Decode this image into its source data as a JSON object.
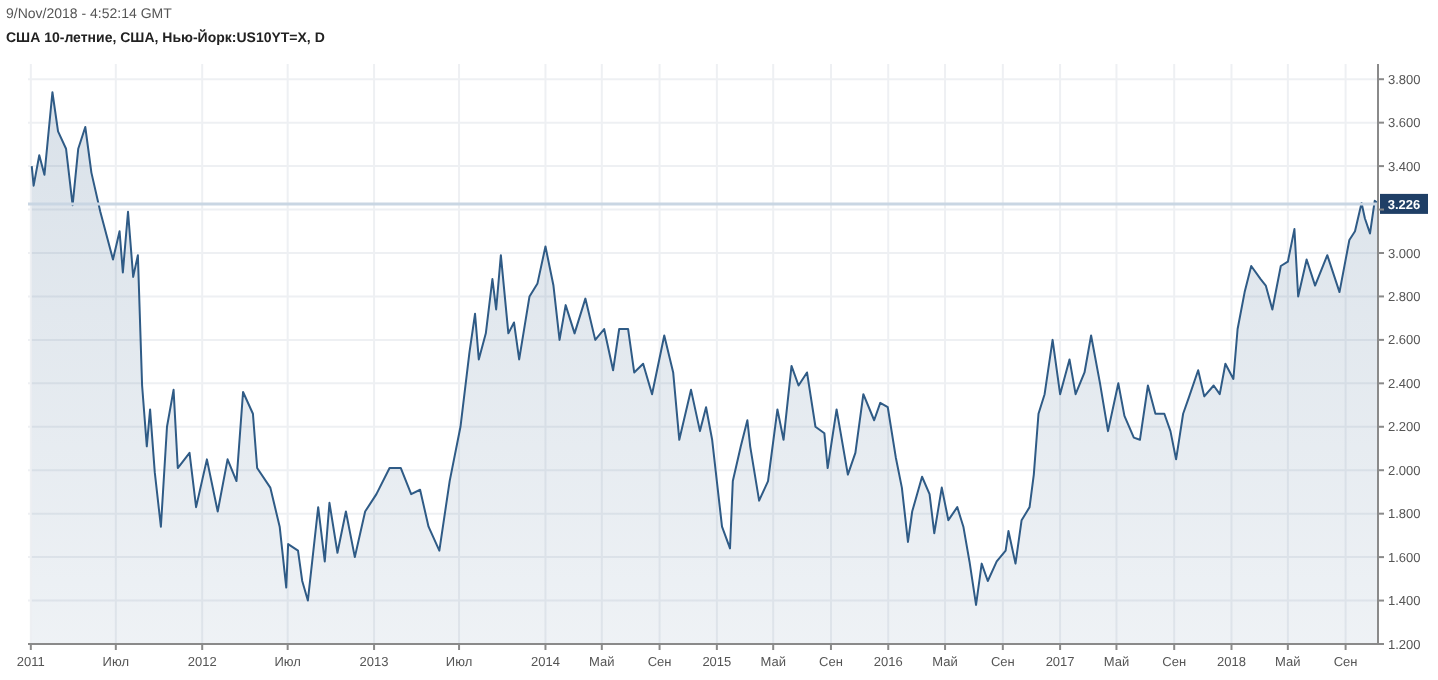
{
  "chart_data": {
    "type": "area",
    "title": "США 10-летние, США, Нью-Йорк:US10YT=X, D",
    "subtitle": "9/Nov/2018 - 4:52:14 GMT",
    "x": [
      "2011-01-03",
      "2011-01-07",
      "2011-01-19",
      "2011-01-30",
      "2011-02-16",
      "2011-02-28",
      "2011-03-17",
      "2011-03-31",
      "2011-04-12",
      "2011-04-27",
      "2011-05-10",
      "2011-05-29",
      "2011-06-25",
      "2011-07-09",
      "2011-07-16",
      "2011-07-27",
      "2011-08-07",
      "2011-08-17",
      "2011-08-26",
      "2011-09-05",
      "2011-09-12",
      "2011-09-22",
      "2011-10-05",
      "2011-10-18",
      "2011-11-01",
      "2011-11-10",
      "2011-12-05",
      "2011-12-19",
      "2012-01-11",
      "2012-02-03",
      "2012-02-24",
      "2012-03-14",
      "2012-03-28",
      "2012-04-18",
      "2012-04-27",
      "2012-05-25",
      "2012-06-14",
      "2012-06-28",
      "2012-07-02",
      "2012-07-23",
      "2012-08-01",
      "2012-08-13",
      "2012-09-04",
      "2012-09-18",
      "2012-09-28",
      "2012-10-15",
      "2012-11-02",
      "2012-11-21",
      "2012-12-13",
      "2013-01-06",
      "2013-02-03",
      "2013-02-27",
      "2013-03-21",
      "2013-04-09",
      "2013-04-27",
      "2013-05-20",
      "2013-06-11",
      "2013-07-04",
      "2013-07-23",
      "2013-08-04",
      "2013-08-12",
      "2013-08-27",
      "2013-09-10",
      "2013-09-18",
      "2013-09-28",
      "2013-10-14",
      "2013-10-26",
      "2013-11-06",
      "2013-11-28",
      "2013-12-15",
      "2014-01-01",
      "2014-01-18",
      "2014-01-31",
      "2014-02-13",
      "2014-03-04",
      "2014-03-27",
      "2014-04-17",
      "2014-05-06",
      "2014-05-25",
      "2014-06-07",
      "2014-06-26",
      "2014-07-09",
      "2014-07-28",
      "2014-08-16",
      "2014-09-11",
      "2014-09-30",
      "2014-10-13",
      "2014-11-07",
      "2014-11-26",
      "2014-12-09",
      "2014-12-22",
      "2015-01-12",
      "2015-01-29",
      "2015-02-04",
      "2015-02-21",
      "2015-03-07",
      "2015-03-13",
      "2015-04-01",
      "2015-04-20",
      "2015-05-10",
      "2015-05-23",
      "2015-06-09",
      "2015-06-24",
      "2015-07-12",
      "2015-07-30",
      "2015-08-18",
      "2015-08-25",
      "2015-09-13",
      "2015-10-07",
      "2015-10-23",
      "2015-11-09",
      "2015-12-02",
      "2015-12-15",
      "2015-12-31",
      "2016-01-17",
      "2016-01-30",
      "2016-02-12",
      "2016-02-21",
      "2016-03-13",
      "2016-03-29",
      "2016-04-08",
      "2016-04-24",
      "2016-05-08",
      "2016-05-27",
      "2016-06-09",
      "2016-06-22",
      "2016-07-06",
      "2016-07-18",
      "2016-07-31",
      "2016-08-19",
      "2016-09-07",
      "2016-09-13",
      "2016-09-28",
      "2016-10-11",
      "2016-10-28",
      "2016-11-06",
      "2016-11-16",
      "2016-11-29",
      "2016-12-16",
      "2017-01-01",
      "2017-01-21",
      "2017-02-03",
      "2017-02-22",
      "2017-03-08",
      "2017-03-27",
      "2017-04-13",
      "2017-05-05",
      "2017-05-18",
      "2017-06-07",
      "2017-06-20",
      "2017-07-07",
      "2017-07-23",
      "2017-08-11",
      "2017-08-24",
      "2017-09-05",
      "2017-09-20",
      "2017-10-03",
      "2017-10-22",
      "2017-11-04",
      "2017-11-24",
      "2017-12-07",
      "2017-12-19",
      "2018-01-05",
      "2018-01-14",
      "2018-01-29",
      "2018-02-12",
      "2018-03-04",
      "2018-03-15",
      "2018-03-29",
      "2018-04-16",
      "2018-05-01",
      "2018-05-15",
      "2018-05-23",
      "2018-06-10",
      "2018-06-28",
      "2018-07-24",
      "2018-08-19",
      "2018-09-09",
      "2018-09-21",
      "2018-10-05",
      "2018-10-12",
      "2018-10-23",
      "2018-11-02",
      "2018-11-08"
    ],
    "series": [
      {
        "color": "#2f5b86",
        "values": [
          3.4,
          3.31,
          3.45,
          3.36,
          3.74,
          3.56,
          3.48,
          3.22,
          3.48,
          3.58,
          3.37,
          3.19,
          2.97,
          3.1,
          2.91,
          3.19,
          2.89,
          2.99,
          2.39,
          2.11,
          2.28,
          1.99,
          1.74,
          2.2,
          2.37,
          2.01,
          2.08,
          1.83,
          2.05,
          1.81,
          2.05,
          1.95,
          2.36,
          2.26,
          2.01,
          1.92,
          1.74,
          1.46,
          1.66,
          1.63,
          1.49,
          1.4,
          1.83,
          1.58,
          1.85,
          1.62,
          1.81,
          1.6,
          1.81,
          1.89,
          2.01,
          2.01,
          1.89,
          1.91,
          1.74,
          1.63,
          1.95,
          2.2,
          2.54,
          2.72,
          2.51,
          2.63,
          2.88,
          2.74,
          2.99,
          2.63,
          2.68,
          2.51,
          2.8,
          2.86,
          3.03,
          2.85,
          2.6,
          2.76,
          2.63,
          2.79,
          2.6,
          2.65,
          2.46,
          2.65,
          2.65,
          2.45,
          2.49,
          2.35,
          2.62,
          2.45,
          2.14,
          2.37,
          2.18,
          2.29,
          2.14,
          1.74,
          1.64,
          1.95,
          2.11,
          2.23,
          2.11,
          1.86,
          1.95,
          2.28,
          2.14,
          2.48,
          2.39,
          2.45,
          2.2,
          2.17,
          2.01,
          2.28,
          1.98,
          2.08,
          2.35,
          2.23,
          2.31,
          2.29,
          2.06,
          1.92,
          1.67,
          1.81,
          1.97,
          1.89,
          1.71,
          1.92,
          1.77,
          1.83,
          1.74,
          1.58,
          1.38,
          1.57,
          1.49,
          1.58,
          1.63,
          1.72,
          1.57,
          1.77,
          1.83,
          1.98,
          2.26,
          2.35,
          2.6,
          2.35,
          2.51,
          2.35,
          2.45,
          2.62,
          2.4,
          2.18,
          2.4,
          2.25,
          2.15,
          2.14,
          2.39,
          2.26,
          2.26,
          2.18,
          2.05,
          2.26,
          2.34,
          2.46,
          2.34,
          2.39,
          2.35,
          2.49,
          2.42,
          2.65,
          2.82,
          2.94,
          2.88,
          2.85,
          2.74,
          2.94,
          2.96,
          3.11,
          2.8,
          2.97,
          2.85,
          2.99,
          2.82,
          3.06,
          3.1,
          3.23,
          3.16,
          3.09,
          3.24,
          3.23
        ]
      }
    ],
    "xlim": [
      "2010-12-26",
      "2018-11-09"
    ],
    "xticks": [
      {
        "value": "2011-01-01",
        "label": "2011"
      },
      {
        "value": "2011-07-01",
        "label": "Июл"
      },
      {
        "value": "2012-01-01",
        "label": "2012"
      },
      {
        "value": "2012-07-01",
        "label": "Июл"
      },
      {
        "value": "2013-01-01",
        "label": "2013"
      },
      {
        "value": "2013-07-01",
        "label": "Июл"
      },
      {
        "value": "2014-01-01",
        "label": "2014"
      },
      {
        "value": "2014-05-01",
        "label": "Май"
      },
      {
        "value": "2014-09-01",
        "label": "Сен"
      },
      {
        "value": "2015-01-01",
        "label": "2015"
      },
      {
        "value": "2015-05-01",
        "label": "Май"
      },
      {
        "value": "2015-09-01",
        "label": "Сен"
      },
      {
        "value": "2016-01-01",
        "label": "2016"
      },
      {
        "value": "2016-05-01",
        "label": "Май"
      },
      {
        "value": "2016-09-01",
        "label": "Сен"
      },
      {
        "value": "2017-01-01",
        "label": "2017"
      },
      {
        "value": "2017-05-01",
        "label": "Май"
      },
      {
        "value": "2017-09-01",
        "label": "Сен"
      },
      {
        "value": "2018-01-01",
        "label": "2018"
      },
      {
        "value": "2018-05-01",
        "label": "Май"
      },
      {
        "value": "2018-09-01",
        "label": "Сен"
      }
    ],
    "ylim": [
      1.2,
      3.87
    ],
    "yticks": [
      {
        "value": 1.2,
        "label": "1.200"
      },
      {
        "value": 1.4,
        "label": "1.400"
      },
      {
        "value": 1.6,
        "label": "1.600"
      },
      {
        "value": 1.8,
        "label": "1.800"
      },
      {
        "value": 2.0,
        "label": "2.000"
      },
      {
        "value": 2.2,
        "label": "2.200"
      },
      {
        "value": 2.4,
        "label": "2.400"
      },
      {
        "value": 2.6,
        "label": "2.600"
      },
      {
        "value": 2.8,
        "label": "2.800"
      },
      {
        "value": 3.0,
        "label": "3.000"
      },
      {
        "value": 3.2,
        "label": null
      },
      {
        "value": 3.4,
        "label": "3.400"
      },
      {
        "value": 3.6,
        "label": "3.600"
      },
      {
        "value": 3.8,
        "label": "3.800"
      }
    ],
    "ref_lines": [
      {
        "axis": "y",
        "value": 3.226,
        "label": "3.226",
        "color": "#c9d6e3"
      }
    ],
    "grid": true
  }
}
